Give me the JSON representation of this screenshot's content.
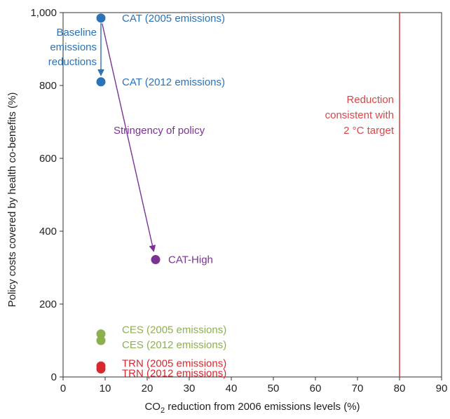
{
  "chart_data": {
    "type": "scatter",
    "xlabel_main": "CO",
    "xlabel_sub": "2",
    "xlabel_rest": " reduction from 2006 emissions levels (%)",
    "ylabel": "Policy costs covered by health co-benefits (%)",
    "xlim": [
      0,
      90
    ],
    "ylim": [
      0,
      1000
    ],
    "x_ticks": [
      0,
      10,
      20,
      30,
      40,
      50,
      60,
      70,
      80,
      90
    ],
    "x_tick_labels": [
      "0",
      "10",
      "20",
      "30",
      "40",
      "50",
      "60",
      "70",
      "80",
      "90"
    ],
    "y_ticks": [
      0,
      200,
      400,
      600,
      800,
      1000
    ],
    "y_tick_labels": [
      "0",
      "200",
      "400",
      "600",
      "800",
      "1,000"
    ],
    "grid": false,
    "points": [
      {
        "x": 9,
        "y": 985,
        "label": "CAT (2005 emissions)",
        "color": "#2a73b8"
      },
      {
        "x": 9,
        "y": 810,
        "label": "CAT (2012 emissions)",
        "color": "#2a73b8"
      },
      {
        "x": 22,
        "y": 322,
        "label": "CAT-High",
        "color": "#7b3294"
      },
      {
        "x": 9,
        "y": 118,
        "label": "CES (2005 emissions)",
        "color": "#8db04f"
      },
      {
        "x": 9,
        "y": 100,
        "label": "CES (2012 emissions)",
        "color": "#8db04f"
      },
      {
        "x": 9,
        "y": 30,
        "label": "TRN (2005 emissions)",
        "color": "#d7282f"
      },
      {
        "x": 9,
        "y": 22,
        "label": "TRN (2012 emissions)",
        "color": "#d7282f"
      }
    ],
    "annotations": {
      "baseline": {
        "lines": [
          "Baseline",
          "emissions",
          "reductions"
        ],
        "color": "#2a73b8",
        "from": [
          9,
          985
        ],
        "to": [
          9,
          810
        ]
      },
      "stringency": {
        "text": "Stringency of policy",
        "color": "#7b3294",
        "from": [
          9,
          985
        ],
        "to": [
          22,
          322
        ]
      },
      "target": {
        "x": 80,
        "lines": [
          "Reduction",
          "consistent with",
          "2 °C target"
        ],
        "color": "#d7474b"
      }
    }
  }
}
